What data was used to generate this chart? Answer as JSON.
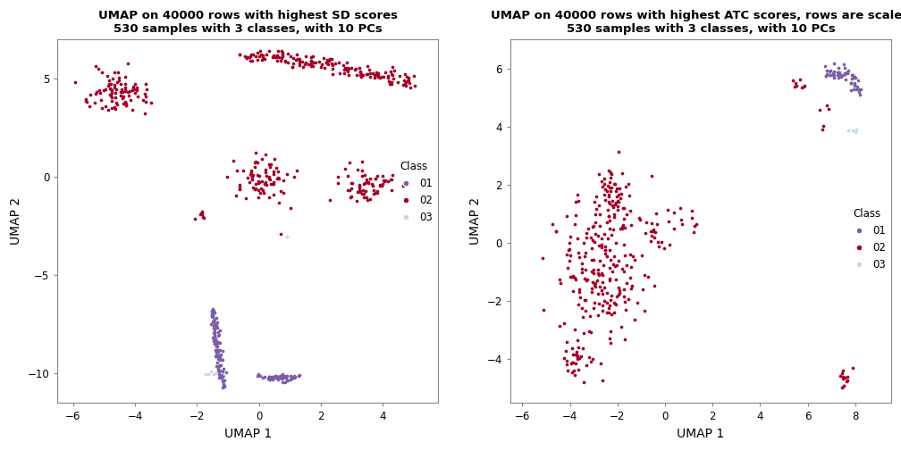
{
  "plot1": {
    "title1": "UMAP on 40000 rows with highest SD scores",
    "title2": "530 samples with 3 classes, with 10 PCs",
    "xlabel": "UMAP 1",
    "ylabel": "UMAP 2",
    "xlim": [
      -6.5,
      5.8
    ],
    "ylim": [
      -11.5,
      7.0
    ],
    "xticks": [
      -6,
      -4,
      -2,
      0,
      2,
      4
    ],
    "yticks": [
      -10,
      -5,
      0,
      5
    ]
  },
  "plot2": {
    "title1": "UMAP on 40000 rows with highest ATC scores, rows are scaled",
    "title2": "530 samples with 3 classes, with 10 PCs",
    "xlabel": "UMAP 1",
    "ylabel": "UMAP 2",
    "xlim": [
      -6.5,
      9.5
    ],
    "ylim": [
      -5.5,
      7.0
    ],
    "xticks": [
      -6,
      -4,
      -2,
      0,
      2,
      4,
      6,
      8
    ],
    "yticks": [
      -4,
      -2,
      0,
      2,
      4,
      6
    ]
  },
  "colors": {
    "01": "#7B5EA7",
    "02": "#A50026",
    "03": "#C8D8EC"
  },
  "bg_color": "#FFFFFF",
  "point_size": 7,
  "seed": 42
}
